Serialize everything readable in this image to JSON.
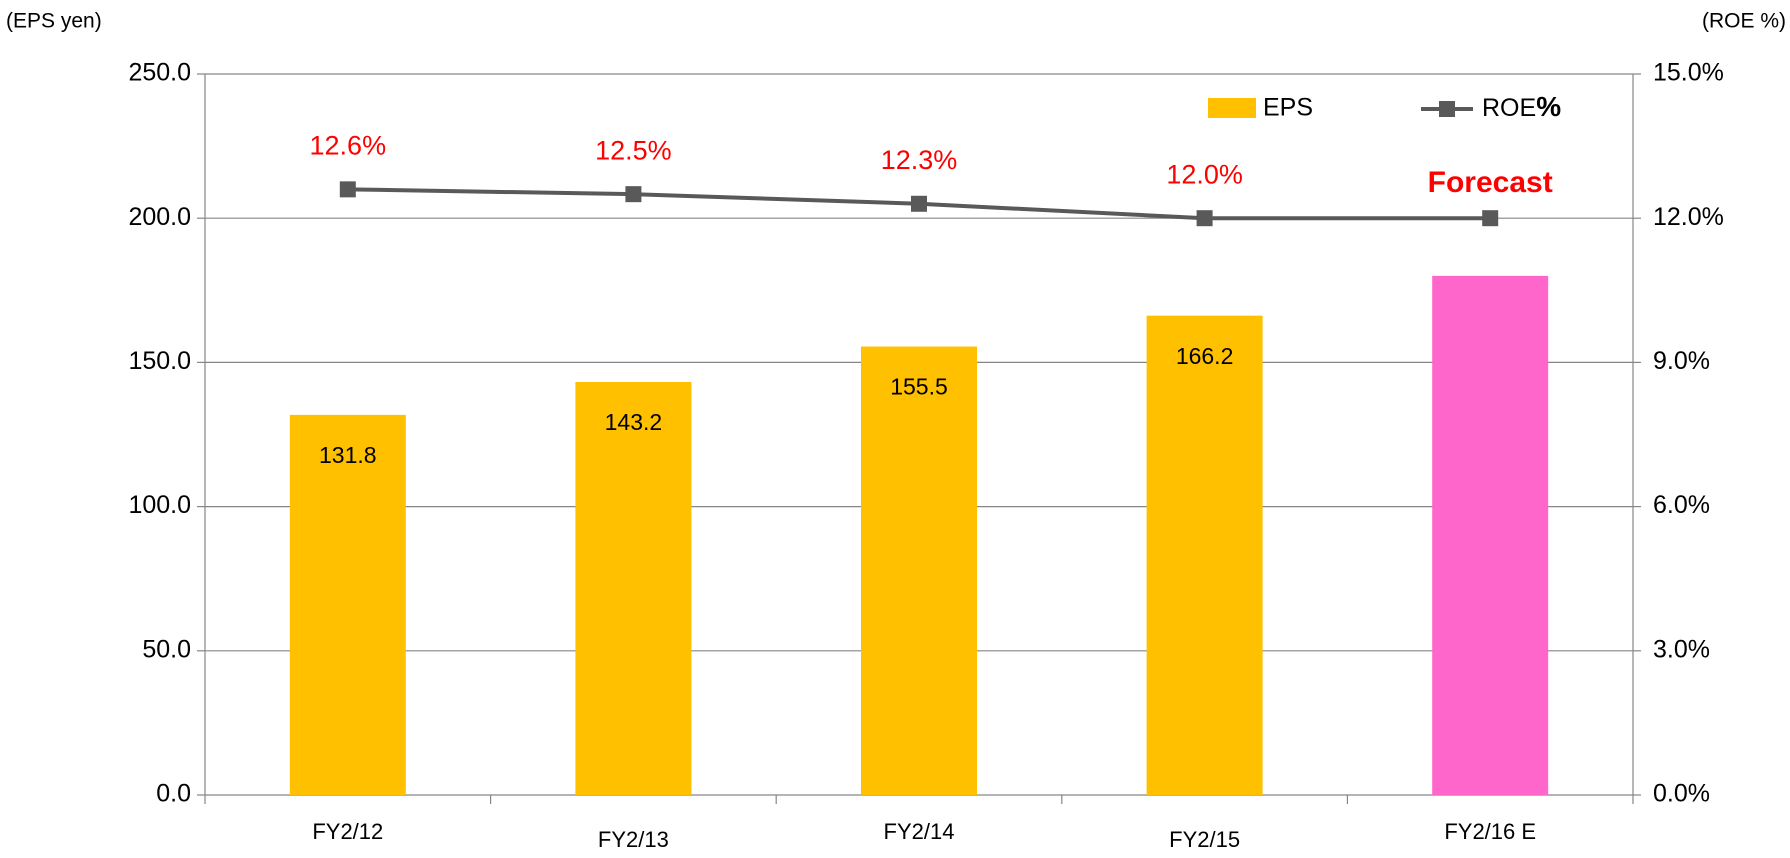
{
  "chart_data": {
    "type": "bar-line",
    "categories": [
      "FY2/12",
      "FY2/13",
      "FY2/14",
      "FY2/15",
      "FY2/16 E"
    ],
    "y_axis_label": "(EPS yen)",
    "y2_axis_label": "(ROE %)",
    "annotation": "Forecast",
    "series": [
      {
        "name": "EPS",
        "type": "bar",
        "colors": [
          "#ffc000",
          "#ffc000",
          "#ffc000",
          "#ffc000",
          "#ff66cc"
        ],
        "values": [
          131.8,
          143.2,
          155.5,
          166.2,
          180.0
        ],
        "value_labels": [
          "131.8",
          "143.2",
          "155.5",
          "166.2",
          null
        ]
      },
      {
        "name": "ROE",
        "name_suffix": "%",
        "type": "line",
        "axis": "y2",
        "color": "#595959",
        "values": [
          12.6,
          12.5,
          12.3,
          12.0,
          12.0
        ],
        "value_labels": [
          "12.6%",
          "12.5%",
          "12.3%",
          "12.0%",
          null
        ]
      }
    ],
    "ylim": [
      0,
      250
    ],
    "yticks": [
      {
        "value": 0,
        "label": "0.0"
      },
      {
        "value": 50,
        "label": "50.0"
      },
      {
        "value": 100,
        "label": "100.0"
      },
      {
        "value": 150,
        "label": "150.0"
      },
      {
        "value": 200,
        "label": "200.0"
      },
      {
        "value": 250,
        "label": "250.0"
      }
    ],
    "y2lim": [
      0,
      15
    ],
    "y2ticks": [
      {
        "value": 0,
        "label": "0.0%"
      },
      {
        "value": 3,
        "label": "3.0%"
      },
      {
        "value": 6,
        "label": "6.0%"
      },
      {
        "value": 9,
        "label": "9.0%"
      },
      {
        "value": 12,
        "label": "12.0%"
      },
      {
        "value": 15,
        "label": "15.0%"
      }
    ],
    "grid": true,
    "legend": "top-right"
  }
}
